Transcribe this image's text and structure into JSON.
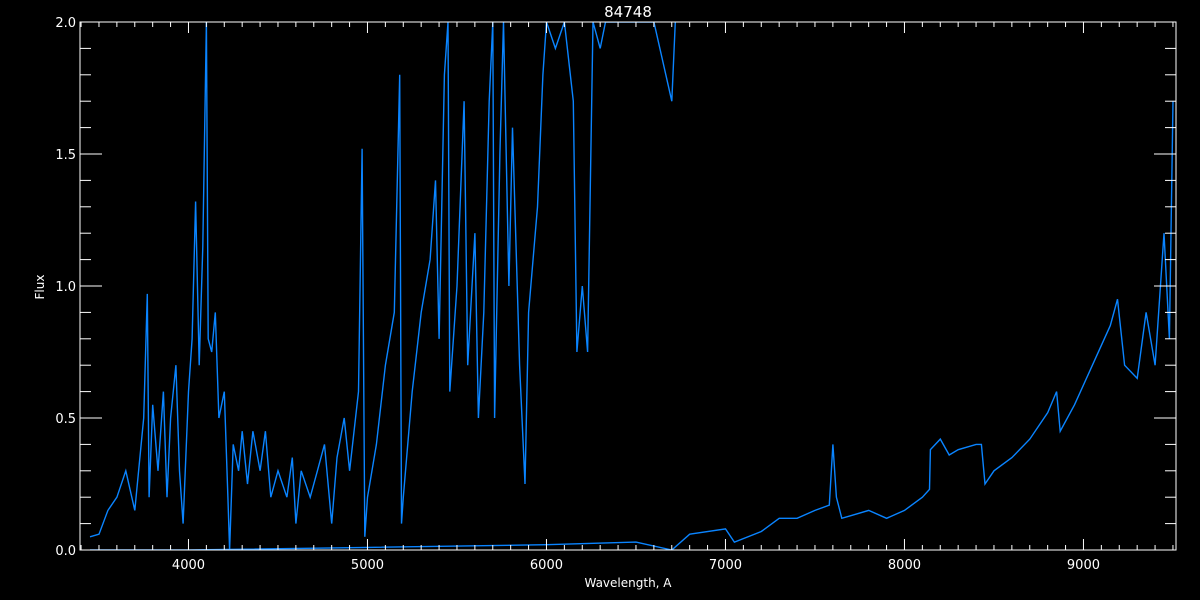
{
  "chart_data": {
    "type": "line",
    "title": "84748",
    "xlabel": "Wavelength, A",
    "ylabel": "Flux",
    "xlim": [
      3394,
      9517
    ],
    "ylim": [
      0,
      2.0
    ],
    "xticks": [
      4000,
      5000,
      6000,
      7000,
      8000,
      9000
    ],
    "xtick_labels": [
      "4000",
      "5000",
      "6000",
      "7000",
      "8000",
      "9000"
    ],
    "yticks": [
      0,
      0.5,
      1.0,
      1.5,
      2.0
    ],
    "ytick_labels": [
      "0.0",
      "0.5",
      "1.0",
      "1.5",
      "2.0"
    ],
    "grid": false,
    "color": "#0a84ff",
    "background": "#000000",
    "series": [
      {
        "x": [
          3450,
          3500,
          3550,
          3600,
          3650,
          3700,
          3750,
          3770,
          3780,
          3800,
          3830,
          3860,
          3880,
          3900,
          3930,
          3950,
          3970,
          4000,
          4020,
          4040,
          4060,
          4080,
          4100,
          4110,
          4130,
          4150,
          4170,
          4200,
          4220,
          4230,
          4250,
          4280,
          4300,
          4330,
          4360,
          4400,
          4430,
          4460,
          4500,
          4550,
          4580,
          4600,
          4630,
          4680,
          4720,
          4760,
          4800,
          4830,
          4870,
          4900,
          4950,
          4970,
          4985,
          5000,
          5050,
          5100,
          5150,
          5180,
          5190,
          5200,
          5250,
          5300,
          5350,
          5380,
          5400,
          5430,
          5450,
          5460,
          5500,
          5540,
          5560,
          5600,
          5620,
          5650,
          5680,
          5700,
          5710,
          5740,
          5760,
          5790,
          5810,
          5850,
          5880,
          5900,
          5950,
          5980,
          6000,
          6050,
          6100,
          6150,
          6170,
          6200,
          6230,
          6260,
          6300,
          6330,
          6400,
          6500,
          6600,
          6700,
          6720
        ],
        "y": [
          0.05,
          0.06,
          0.15,
          0.2,
          0.3,
          0.15,
          0.5,
          0.97,
          0.2,
          0.55,
          0.3,
          0.6,
          0.2,
          0.5,
          0.7,
          0.3,
          0.1,
          0.6,
          0.8,
          1.32,
          0.7,
          1.15,
          2.0,
          0.8,
          0.75,
          0.9,
          0.5,
          0.6,
          0.2,
          0.0,
          0.4,
          0.3,
          0.45,
          0.25,
          0.45,
          0.3,
          0.45,
          0.2,
          0.3,
          0.2,
          0.35,
          0.1,
          0.3,
          0.2,
          0.3,
          0.4,
          0.1,
          0.35,
          0.5,
          0.3,
          0.6,
          1.52,
          0.05,
          0.2,
          0.4,
          0.7,
          0.9,
          1.8,
          0.1,
          0.2,
          0.6,
          0.9,
          1.1,
          1.4,
          0.8,
          1.8,
          2.0,
          0.6,
          1.0,
          1.7,
          0.7,
          1.2,
          0.5,
          0.9,
          1.7,
          2.0,
          0.5,
          1.5,
          2.0,
          1.0,
          1.6,
          0.7,
          0.25,
          0.9,
          1.3,
          1.8,
          2.0,
          1.9,
          2.0,
          1.7,
          0.75,
          1.0,
          0.75,
          2.0,
          1.9,
          2.0,
          2.0,
          2.0,
          2.0,
          1.7,
          2.0
        ]
      },
      {
        "x": [
          3450,
          4000,
          5000,
          6000,
          6500,
          6700,
          6800,
          7000,
          7050,
          7200,
          7300,
          7400,
          7500,
          7580,
          7600,
          7620,
          7650,
          7700,
          7800,
          7900,
          8000,
          8100,
          8140,
          8145,
          8200,
          8250,
          8300,
          8400,
          8430,
          8450,
          8500,
          8600,
          8700,
          8800,
          8850,
          8870,
          8950,
          9050,
          9150,
          9190,
          9230,
          9300,
          9350,
          9400,
          9450,
          9480,
          9500
        ],
        "y": [
          0.0,
          0.0,
          0.01,
          0.02,
          0.03,
          0.0,
          0.06,
          0.08,
          0.03,
          0.07,
          0.12,
          0.12,
          0.15,
          0.17,
          0.4,
          0.2,
          0.12,
          0.13,
          0.15,
          0.12,
          0.15,
          0.2,
          0.23,
          0.38,
          0.42,
          0.36,
          0.38,
          0.4,
          0.4,
          0.25,
          0.3,
          0.35,
          0.42,
          0.52,
          0.6,
          0.45,
          0.55,
          0.7,
          0.85,
          0.95,
          0.7,
          0.65,
          0.9,
          0.7,
          1.2,
          0.8,
          1.7
        ]
      }
    ]
  }
}
